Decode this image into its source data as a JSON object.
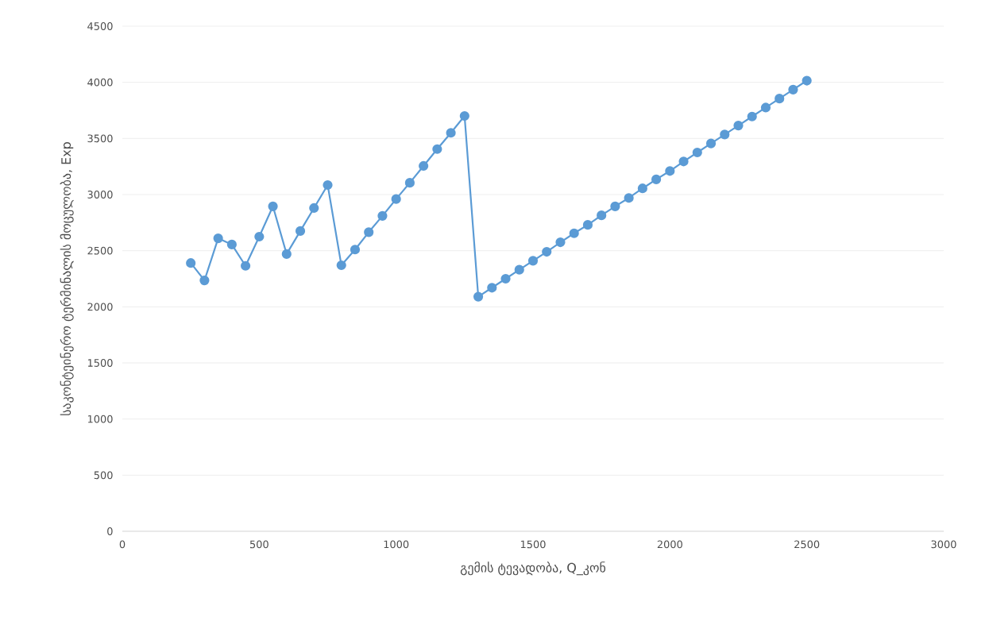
{
  "chart_data": {
    "type": "line",
    "xlabel": "გემის ტევადობა, Q_კონ",
    "ylabel": "საკონტეინერო ტერმინალის მოცულობა, Exp",
    "x": [
      250,
      300,
      350,
      400,
      450,
      500,
      550,
      600,
      650,
      700,
      750,
      800,
      850,
      900,
      950,
      1000,
      1050,
      1100,
      1150,
      1200,
      1250,
      1300,
      1350,
      1400,
      1450,
      1500,
      1550,
      1600,
      1650,
      1700,
      1750,
      1800,
      1850,
      1900,
      1950,
      2000,
      2050,
      2100,
      2150,
      2200,
      2250,
      2300,
      2350,
      2400,
      2450,
      2500
    ],
    "values": [
      2390,
      2235,
      2610,
      2555,
      2365,
      2625,
      2895,
      2470,
      2675,
      2880,
      3085,
      2370,
      2510,
      2665,
      2810,
      2960,
      3105,
      3255,
      3405,
      3550,
      3700,
      2090,
      2170,
      2250,
      2330,
      2410,
      2490,
      2575,
      2655,
      2730,
      2815,
      2895,
      2970,
      3055,
      3135,
      3210,
      3295,
      3375,
      3455,
      3535,
      3615,
      3695,
      3775,
      3855,
      3935,
      4015
    ],
    "color": "#5b9bd5",
    "marker": "circle",
    "line_style": "solid",
    "grid": "y",
    "xlim": [
      0,
      3000
    ],
    "xticks": [
      0,
      500,
      1000,
      1500,
      2000,
      2500,
      3000
    ],
    "ylim": [
      0,
      4500
    ],
    "yticks": [
      0,
      500,
      1000,
      1500,
      2000,
      2500,
      3000,
      3500,
      4000,
      4500
    ]
  }
}
